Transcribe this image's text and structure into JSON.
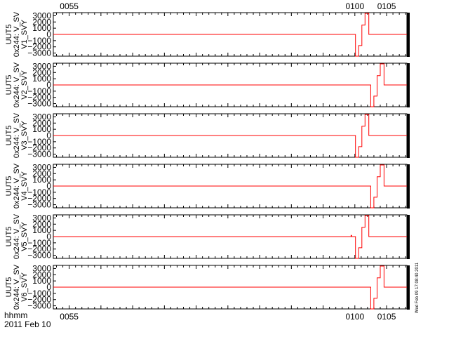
{
  "chart_data": {
    "type": "line",
    "line_color": "#ff0000",
    "time_ticks": [
      {
        "x": 55,
        "label": "0055"
      },
      {
        "x": 100,
        "label": "0100"
      },
      {
        "x": 105,
        "label": "0105"
      }
    ],
    "xlim": [
      52.5,
      108.2
    ],
    "ylim": [
      -3500,
      3500
    ],
    "y_ticks": [
      3000,
      2000,
      1000,
      0,
      -1000,
      -2000,
      -3000
    ],
    "y_tick_labels": [
      "3000",
      "2000",
      "1000",
      "0",
      "−1000",
      "−2000",
      "−3000"
    ],
    "panels": [
      {
        "ylabel": [
          "UUT5",
          "0x244: V_SV",
          "V1_SVY"
        ],
        "x": [
          52.5,
          100.1,
          100.1,
          100.6,
          100.6,
          101.1,
          101.1,
          101.6,
          101.6,
          102.2,
          102.2,
          108.2
        ],
        "y": [
          0,
          0,
          -3500,
          -3500,
          -1800,
          -1800,
          1500,
          1500,
          3500,
          3500,
          0,
          0
        ]
      },
      {
        "ylabel": [
          "UUT5",
          "0x244: V_SV",
          "V2_SVY"
        ],
        "x": [
          52.5,
          102.5,
          102.5,
          103.0,
          103.0,
          103.5,
          103.5,
          104.0,
          104.0,
          104.6,
          104.6,
          108.2
        ],
        "y": [
          0,
          0,
          -3500,
          -3500,
          -1800,
          -1800,
          1500,
          1500,
          3500,
          3500,
          0,
          0
        ]
      },
      {
        "ylabel": [
          "UUT5",
          "0x244: V_SV",
          "V3_SVY"
        ],
        "x": [
          52.5,
          100.1,
          100.1,
          100.6,
          100.6,
          101.1,
          101.1,
          101.6,
          101.6,
          102.2,
          102.2,
          108.2
        ],
        "y": [
          0,
          0,
          -3500,
          -3500,
          -1800,
          -1800,
          1500,
          1500,
          3500,
          3500,
          0,
          0
        ]
      },
      {
        "ylabel": [
          "UUT5",
          "0x244: V_SV",
          "V4_SVY"
        ],
        "x": [
          52.5,
          102.5,
          102.5,
          103.0,
          103.0,
          103.5,
          103.5,
          104.0,
          104.0,
          104.6,
          104.6,
          108.2
        ],
        "y": [
          0,
          0,
          -3500,
          -3500,
          -1800,
          -1800,
          1500,
          1500,
          3500,
          3500,
          0,
          0
        ]
      },
      {
        "ylabel": [
          "UUT5",
          "0x244: V_SV",
          "V5_SVY"
        ],
        "x": [
          52.5,
          99.4,
          99.4,
          99.5,
          99.5,
          100.1,
          100.1,
          100.6,
          100.6,
          101.1,
          101.1,
          101.6,
          101.6,
          102.2,
          102.2,
          108.2
        ],
        "y": [
          0,
          0,
          200,
          200,
          0,
          0,
          -3500,
          -3500,
          -1800,
          -1800,
          1500,
          1500,
          3500,
          3500,
          0,
          0
        ]
      },
      {
        "ylabel": [
          "UUT5",
          "0x244: V_SV",
          "V6_SVY"
        ],
        "x": [
          52.5,
          102.5,
          102.5,
          103.0,
          103.0,
          103.5,
          103.5,
          104.0,
          104.0,
          104.6,
          104.6,
          108.2
        ],
        "y": [
          0,
          0,
          -3500,
          -3500,
          -1800,
          -1800,
          1500,
          1500,
          3500,
          3500,
          0,
          0
        ]
      }
    ]
  },
  "footer": {
    "time_unit": "hhmm",
    "date": "2011 Feb 10"
  },
  "timestamp": "Wed Feb 09 17:08:40 2011"
}
